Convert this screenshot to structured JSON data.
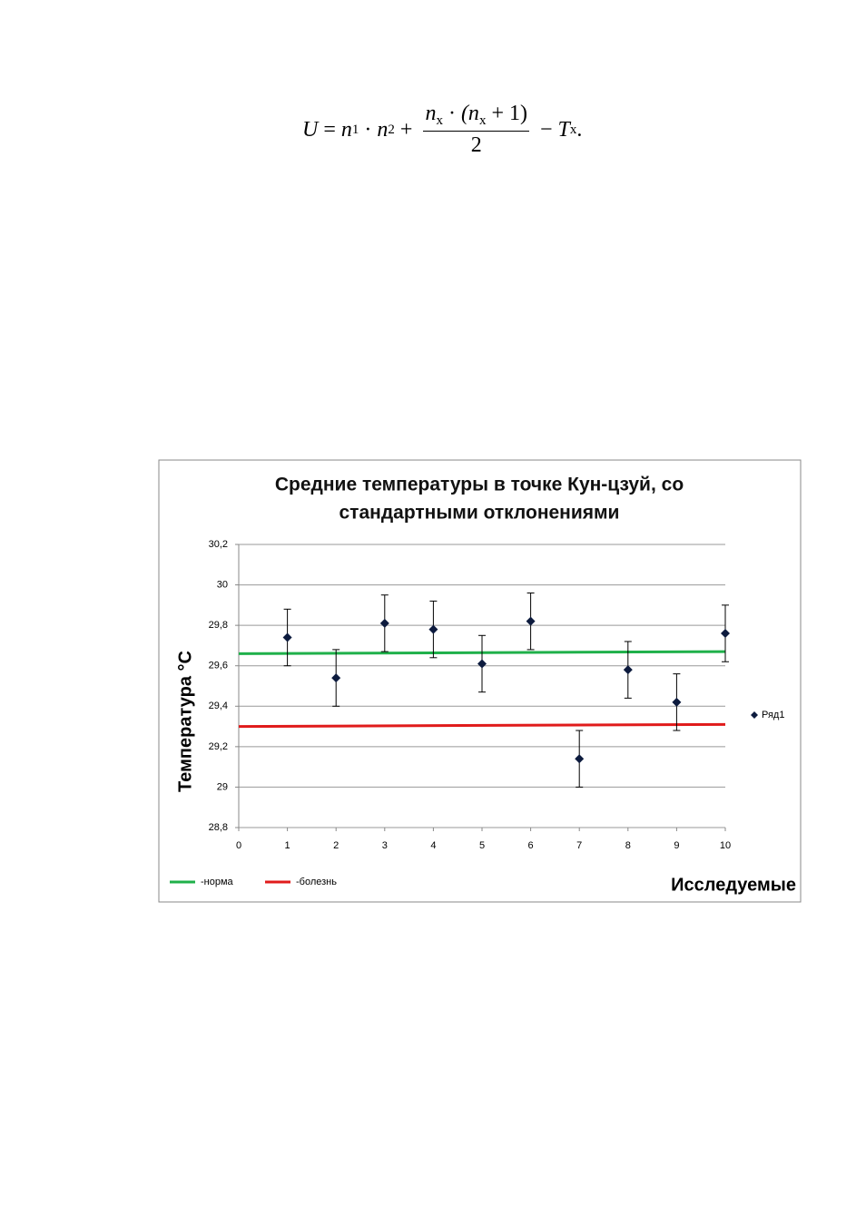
{
  "formula": {
    "left": [
      "U",
      "=",
      "n",
      "1",
      "·",
      "n",
      "2",
      "+"
    ],
    "numerator": [
      "n",
      "x",
      "·",
      "(n",
      "x",
      "+ 1)"
    ],
    "denominator": "2",
    "right": [
      "−",
      "T",
      "x",
      "."
    ]
  },
  "chart_data": {
    "type": "scatter",
    "title": [
      "Средние температуры в точке Кун-цзуй, со",
      "стандартными отклонениями"
    ],
    "y_label": "Температура °C",
    "x_label": "Исследуемые",
    "xlim": [
      0,
      10
    ],
    "xticks": [
      0,
      1,
      2,
      3,
      4,
      5,
      6,
      7,
      8,
      9,
      10
    ],
    "ylim": [
      28.8,
      30.2
    ],
    "yticks": [
      {
        "value": 28.8,
        "label": "28,8"
      },
      29,
      {
        "value": 29.2,
        "label": "29,2"
      },
      {
        "value": 29.4,
        "label": "29,4"
      },
      {
        "value": 29.6,
        "label": "29,6"
      },
      {
        "value": 29.8,
        "label": "29,8"
      },
      30,
      {
        "value": 30.2,
        "label": "30,2"
      }
    ],
    "grid": true,
    "series": [
      {
        "name": "Ряд1",
        "color": "#0d1b3e",
        "x": [
          1,
          2,
          3,
          4,
          5,
          6,
          7,
          8,
          9,
          10
        ],
        "values": [
          29.74,
          29.54,
          29.81,
          29.78,
          29.61,
          29.82,
          29.14,
          29.58,
          29.42,
          29.76
        ],
        "errors": [
          0.14,
          0.14,
          0.14,
          0.14,
          0.14,
          0.14,
          0.14,
          0.14,
          0.14,
          0.14
        ]
      }
    ],
    "lines": [
      {
        "name": "-норма",
        "color": "#1fb04a",
        "x": [
          0,
          10
        ],
        "values": [
          29.66,
          29.67
        ]
      },
      {
        "name": "-болезнь",
        "color": "#e01b1b",
        "x": [
          0,
          10
        ],
        "values": [
          29.3,
          29.31
        ]
      }
    ]
  }
}
